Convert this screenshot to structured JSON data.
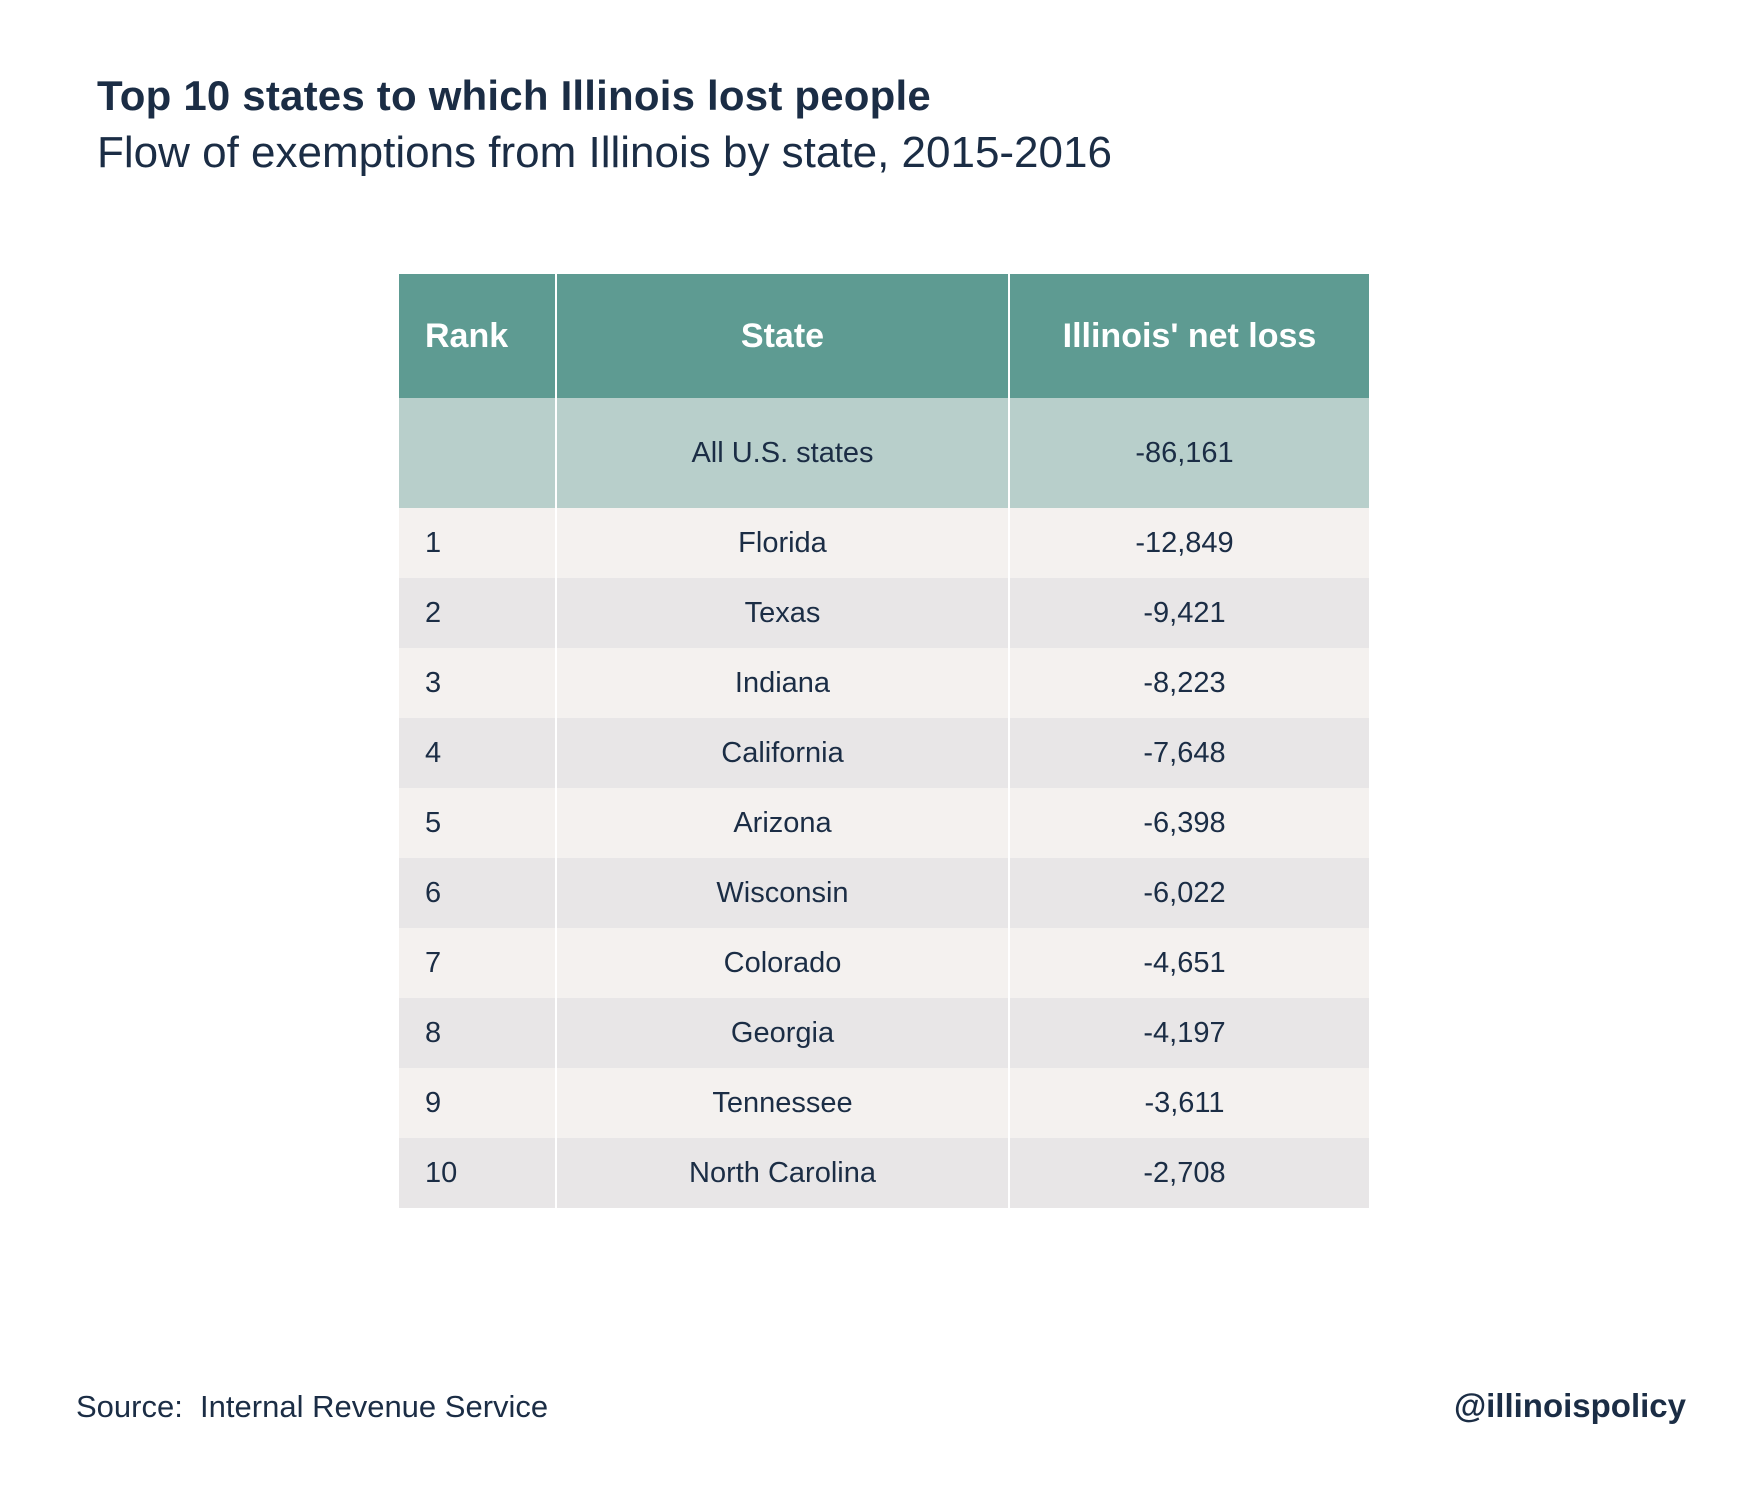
{
  "title": "Top 10 states to which Illinois lost people",
  "subtitle": "Flow of exemptions from Illinois by state, 2015-2016",
  "table": {
    "headers": {
      "rank": "Rank",
      "state": "State",
      "loss": "Illinois' net loss"
    },
    "total": {
      "rank": "",
      "state": "All U.S. states",
      "loss": "-86,161"
    },
    "rows": [
      {
        "rank": "1",
        "state": "Florida",
        "loss": "-12,849"
      },
      {
        "rank": "2",
        "state": "Texas",
        "loss": "-9,421"
      },
      {
        "rank": "3",
        "state": "Indiana",
        "loss": "-8,223"
      },
      {
        "rank": "4",
        "state": "California",
        "loss": "-7,648"
      },
      {
        "rank": "5",
        "state": "Arizona",
        "loss": "-6,398"
      },
      {
        "rank": "6",
        "state": "Wisconsin",
        "loss": "-6,022"
      },
      {
        "rank": "7",
        "state": "Colorado",
        "loss": "-4,651"
      },
      {
        "rank": "8",
        "state": "Georgia",
        "loss": "-4,197"
      },
      {
        "rank": "9",
        "state": "Tennessee",
        "loss": "-3,611"
      },
      {
        "rank": "10",
        "state": "North Carolina",
        "loss": "-2,708"
      }
    ]
  },
  "footer": {
    "source": "Source:  Internal Revenue Service",
    "handle": "@illinoispolicy"
  },
  "colors": {
    "header_bg": "#5e9b92",
    "total_bg": "#b8cfcb",
    "row_light": "#f4f1ef",
    "row_dark": "#e8e6e7",
    "text": "#1b2d45"
  },
  "chart_data": {
    "type": "table",
    "title": "Top 10 states to which Illinois lost people",
    "subtitle": "Flow of exemptions from Illinois by state, 2015-2016",
    "columns": [
      "Rank",
      "State",
      "Illinois' net loss"
    ],
    "total": {
      "state": "All U.S. states",
      "value": -86161
    },
    "categories": [
      "Florida",
      "Texas",
      "Indiana",
      "California",
      "Arizona",
      "Wisconsin",
      "Colorado",
      "Georgia",
      "Tennessee",
      "North Carolina"
    ],
    "ranks": [
      1,
      2,
      3,
      4,
      5,
      6,
      7,
      8,
      9,
      10
    ],
    "values": [
      -12849,
      -9421,
      -8223,
      -7648,
      -6398,
      -6022,
      -4651,
      -4197,
      -3611,
      -2708
    ]
  }
}
